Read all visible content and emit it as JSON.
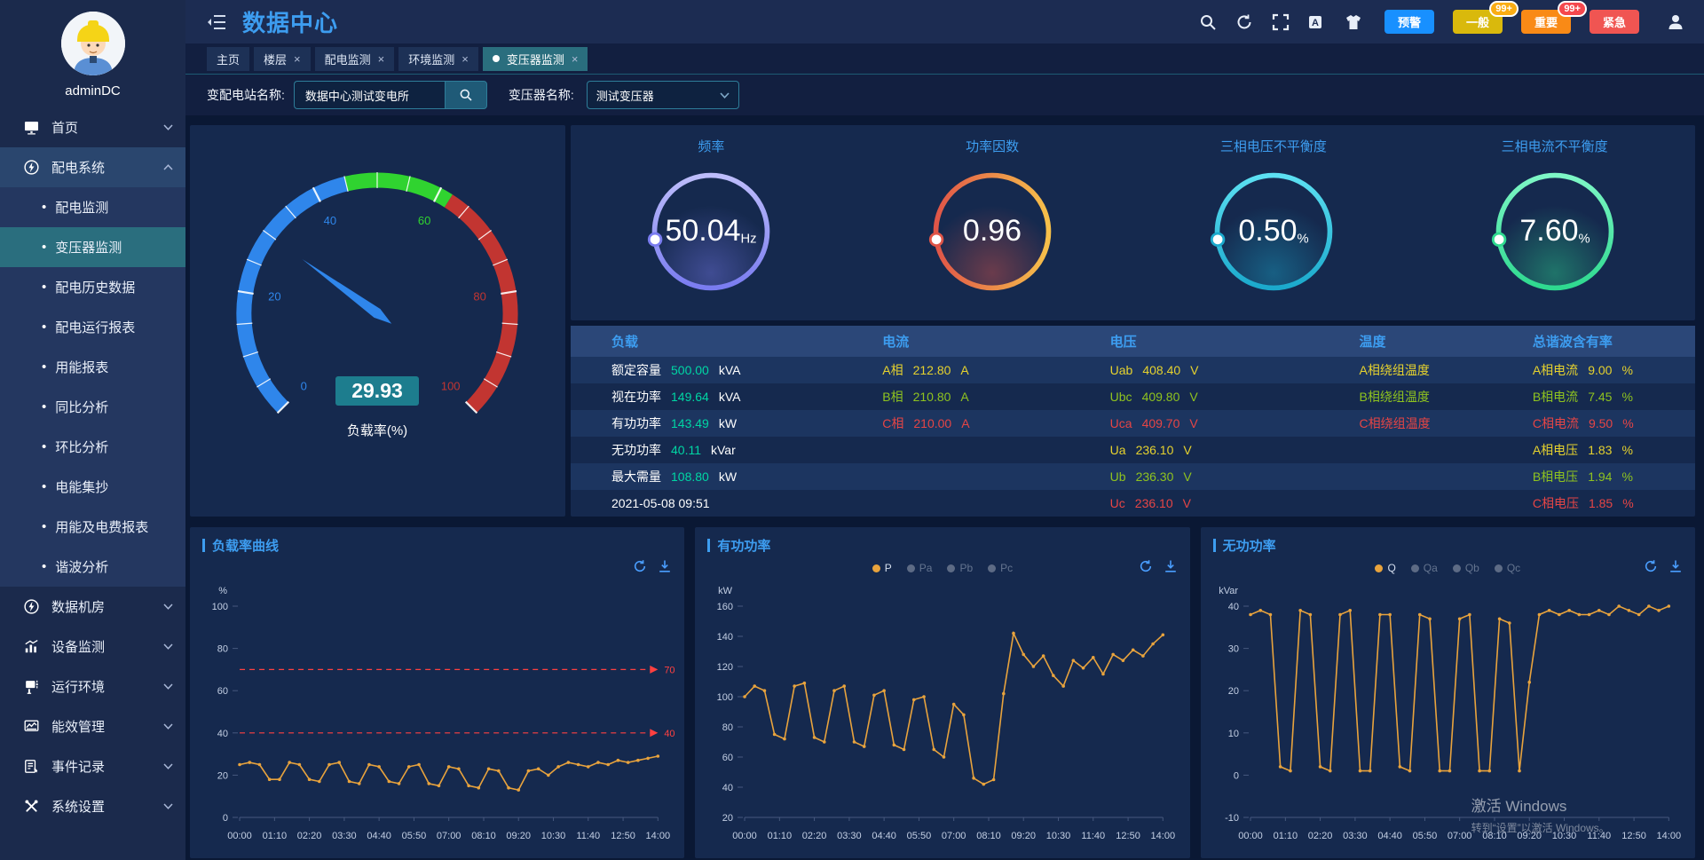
{
  "header": {
    "title": "数据中心",
    "alarm_buttons": [
      {
        "label": "预警",
        "color": "#1890ff"
      },
      {
        "label": "一般",
        "color": "#d9b90c",
        "badge": "99+",
        "badge_color": "#faad14"
      },
      {
        "label": "重要",
        "color": "#f98a16",
        "badge": "99+",
        "badge_color": "#f5484d"
      },
      {
        "label": "紧急",
        "color": "#f05552"
      }
    ]
  },
  "sidebar": {
    "username": "adminDC",
    "menu": [
      {
        "label": "首页",
        "type": "top",
        "icon": "monitor-icon",
        "chevron": "down"
      },
      {
        "label": "配电系统",
        "type": "top",
        "icon": "power-icon",
        "chevron": "up",
        "expanded": true
      },
      {
        "label": "配电监测",
        "type": "sub"
      },
      {
        "label": "变压器监测",
        "type": "sub",
        "active": true
      },
      {
        "label": "配电历史数据",
        "type": "sub"
      },
      {
        "label": "配电运行报表",
        "type": "sub"
      },
      {
        "label": "用能报表",
        "type": "sub"
      },
      {
        "label": "同比分析",
        "type": "sub"
      },
      {
        "label": "环比分析",
        "type": "sub"
      },
      {
        "label": "电能集抄",
        "type": "sub"
      },
      {
        "label": "用能及电费报表",
        "type": "sub"
      },
      {
        "label": "谐波分析",
        "type": "sub"
      },
      {
        "label": "数据机房",
        "type": "top",
        "icon": "power-icon",
        "chevron": "down"
      },
      {
        "label": "设备监测",
        "type": "top",
        "icon": "chart-icon",
        "chevron": "down"
      },
      {
        "label": "运行环境",
        "type": "top",
        "icon": "device-icon",
        "chevron": "down"
      },
      {
        "label": "能效管理",
        "type": "top",
        "icon": "energy-icon",
        "chevron": "down"
      },
      {
        "label": "事件记录",
        "type": "top",
        "icon": "log-icon",
        "chevron": "down"
      },
      {
        "label": "系统设置",
        "type": "top",
        "icon": "settings-icon",
        "chevron": "down"
      }
    ]
  },
  "tabs": [
    {
      "label": "主页",
      "closable": false,
      "active": false
    },
    {
      "label": "楼层",
      "closable": true,
      "active": false
    },
    {
      "label": "配电监测",
      "closable": true,
      "active": false
    },
    {
      "label": "环境监测",
      "closable": true,
      "active": false
    },
    {
      "label": "变压器监测",
      "closable": true,
      "active": true
    }
  ],
  "filters": {
    "station_label": "变配电站名称:",
    "station_value": "数据中心测试变电所",
    "transformer_label": "变压器名称:",
    "transformer_value": "测试变压器"
  },
  "table": {
    "headers": [
      "负载",
      "电流",
      "电压",
      "温度",
      "总谐波含有率"
    ],
    "rows": [
      [
        {
          "label": "额定容量",
          "value": "500.00",
          "unit": "kVA",
          "style": "load"
        },
        {
          "label": "A相",
          "value": "212.80",
          "unit": "A",
          "style": "a"
        },
        {
          "label": "Uab",
          "value": "408.40",
          "unit": "V",
          "style": "a"
        },
        {
          "label": "A相绕组温度",
          "value": "",
          "unit": "",
          "style": "a"
        },
        {
          "label": "A相电流",
          "value": "9.00",
          "unit": "%",
          "style": "a"
        }
      ],
      [
        {
          "label": "视在功率",
          "value": "149.64",
          "unit": "kVA",
          "style": "load"
        },
        {
          "label": "B相",
          "value": "210.80",
          "unit": "A",
          "style": "b"
        },
        {
          "label": "Ubc",
          "value": "409.80",
          "unit": "V",
          "style": "b"
        },
        {
          "label": "B相绕组温度",
          "value": "",
          "unit": "",
          "style": "b"
        },
        {
          "label": "B相电流",
          "value": "7.45",
          "unit": "%",
          "style": "b"
        }
      ],
      [
        {
          "label": "有功功率",
          "value": "143.49",
          "unit": "kW",
          "style": "load"
        },
        {
          "label": "C相",
          "value": "210.00",
          "unit": "A",
          "style": "c"
        },
        {
          "label": "Uca",
          "value": "409.70",
          "unit": "V",
          "style": "c"
        },
        {
          "label": "C相绕组温度",
          "value": "",
          "unit": "",
          "style": "c"
        },
        {
          "label": "C相电流",
          "value": "9.50",
          "unit": "%",
          "style": "c"
        }
      ],
      [
        {
          "label": "无功功率",
          "value": "40.11",
          "unit": "kVar",
          "style": "load"
        },
        null,
        {
          "label": "Ua",
          "value": "236.10",
          "unit": "V",
          "style": "a"
        },
        null,
        {
          "label": "A相电压",
          "value": "1.83",
          "unit": "%",
          "style": "a"
        }
      ],
      [
        {
          "label": "最大需量",
          "value": "108.80",
          "unit": "kW",
          "style": "load"
        },
        null,
        {
          "label": "Ub",
          "value": "236.30",
          "unit": "V",
          "style": "b"
        },
        null,
        {
          "label": "B相电压",
          "value": "1.94",
          "unit": "%",
          "style": "b"
        }
      ],
      [
        {
          "label": "2021-05-08 09:51",
          "value": "",
          "unit": "",
          "style": "plain"
        },
        null,
        {
          "label": "Uc",
          "value": "236.10",
          "unit": "V",
          "style": "c"
        },
        null,
        {
          "label": "C相电压",
          "value": "1.85",
          "unit": "%",
          "style": "c"
        }
      ]
    ]
  },
  "chart_data": [
    {
      "type": "gauge",
      "label": "负载率(%)",
      "value": 29.93,
      "min": 0,
      "max": 100,
      "ticks": [
        0,
        20,
        40,
        60,
        80,
        100
      ],
      "zones": [
        {
          "to": 45,
          "color": "#2f86eb"
        },
        {
          "to": 62,
          "color": "#30d330"
        },
        {
          "to": 100,
          "color": "#c23531"
        }
      ],
      "value_box_color": "#1d7d8e",
      "needle_color": "#2f86eb"
    },
    {
      "type": "ring",
      "title": "频率",
      "value": "50.04",
      "unit": "Hz",
      "color_light": "#bdbdfb",
      "color_deep": "#7a7cf0",
      "direction": "v"
    },
    {
      "type": "ring",
      "title": "功率因数",
      "value": "0.96",
      "unit": "",
      "color_light": "#f6c04a",
      "color_deep": "#e05548",
      "direction": "h"
    },
    {
      "type": "ring",
      "title": "三相电压不平衡度",
      "value": "0.50",
      "unit": "%",
      "color_light": "#5ce0f2",
      "color_deep": "#1ba9cc",
      "direction": "v"
    },
    {
      "type": "ring",
      "title": "三相电流不平衡度",
      "value": "7.60",
      "unit": "%",
      "color_light": "#7ef7c6",
      "color_deep": "#2ed98f",
      "direction": "v"
    },
    {
      "type": "line",
      "title": "负载率曲线",
      "unit": "%",
      "ylim": [
        0,
        100
      ],
      "yticks": [
        0,
        20,
        40,
        60,
        80,
        100
      ],
      "x_labels": [
        "00:00",
        "01:10",
        "02:20",
        "03:30",
        "04:40",
        "05:50",
        "07:00",
        "08:10",
        "09:20",
        "10:30",
        "11:40",
        "12:50",
        "14:00"
      ],
      "marklines": [
        {
          "value": 70,
          "color": "#ff4040"
        },
        {
          "value": 40,
          "color": "#ff4040"
        }
      ],
      "series": [
        {
          "name": "负载率",
          "color": "#e8a33d",
          "values": [
            25,
            26,
            25,
            18,
            18,
            26,
            25,
            18,
            17,
            25,
            26,
            17,
            16,
            25,
            24,
            17,
            16,
            24,
            25,
            16,
            15,
            24,
            23,
            15,
            14,
            23,
            22,
            14,
            13,
            22,
            23,
            20,
            24,
            26,
            25,
            24,
            26,
            25,
            27,
            26,
            27,
            28,
            29
          ]
        }
      ]
    },
    {
      "type": "line",
      "title": "有功功率",
      "unit": "kW",
      "ylim": [
        20,
        160
      ],
      "yticks": [
        20,
        40,
        60,
        80,
        100,
        120,
        140,
        160
      ],
      "x_labels": [
        "00:00",
        "01:10",
        "02:20",
        "03:30",
        "04:40",
        "05:50",
        "07:00",
        "08:10",
        "09:20",
        "10:30",
        "11:40",
        "12:50",
        "14:00"
      ],
      "legend": [
        {
          "name": "P",
          "selected": true
        },
        {
          "name": "Pa",
          "selected": false
        },
        {
          "name": "Pb",
          "selected": false
        },
        {
          "name": "Pc",
          "selected": false
        }
      ],
      "series": [
        {
          "name": "P",
          "color": "#e8a33d",
          "values": [
            100,
            107,
            104,
            75,
            72,
            107,
            109,
            73,
            70,
            104,
            107,
            70,
            67,
            101,
            104,
            68,
            65,
            98,
            100,
            65,
            60,
            95,
            88,
            46,
            42,
            45,
            102,
            142,
            128,
            120,
            127,
            114,
            107,
            124,
            119,
            126,
            115,
            128,
            124,
            131,
            127,
            135,
            141
          ]
        }
      ]
    },
    {
      "type": "line",
      "title": "无功功率",
      "unit": "kVar",
      "ylim": [
        -10,
        40
      ],
      "yticks": [
        -10,
        0,
        10,
        20,
        30,
        40
      ],
      "x_labels": [
        "00:00",
        "01:10",
        "02:20",
        "03:30",
        "04:40",
        "05:50",
        "07:00",
        "08:10",
        "09:20",
        "10:30",
        "11:40",
        "12:50",
        "14:00"
      ],
      "legend": [
        {
          "name": "Q",
          "selected": true
        },
        {
          "name": "Qa",
          "selected": false
        },
        {
          "name": "Qb",
          "selected": false
        },
        {
          "name": "Qc",
          "selected": false
        }
      ],
      "series": [
        {
          "name": "Q",
          "color": "#e8a33d",
          "values": [
            38,
            39,
            38,
            2,
            1,
            39,
            38,
            2,
            1,
            38,
            39,
            1,
            1,
            38,
            38,
            2,
            1,
            38,
            37,
            1,
            1,
            37,
            38,
            1,
            1,
            37,
            36,
            1,
            22,
            38,
            39,
            38,
            39,
            38,
            38,
            39,
            38,
            40,
            39,
            38,
            40,
            39,
            40
          ]
        }
      ]
    }
  ],
  "watermark": {
    "line1": "激活 Windows",
    "line2": "转到“设置”以激活 Windows。"
  }
}
